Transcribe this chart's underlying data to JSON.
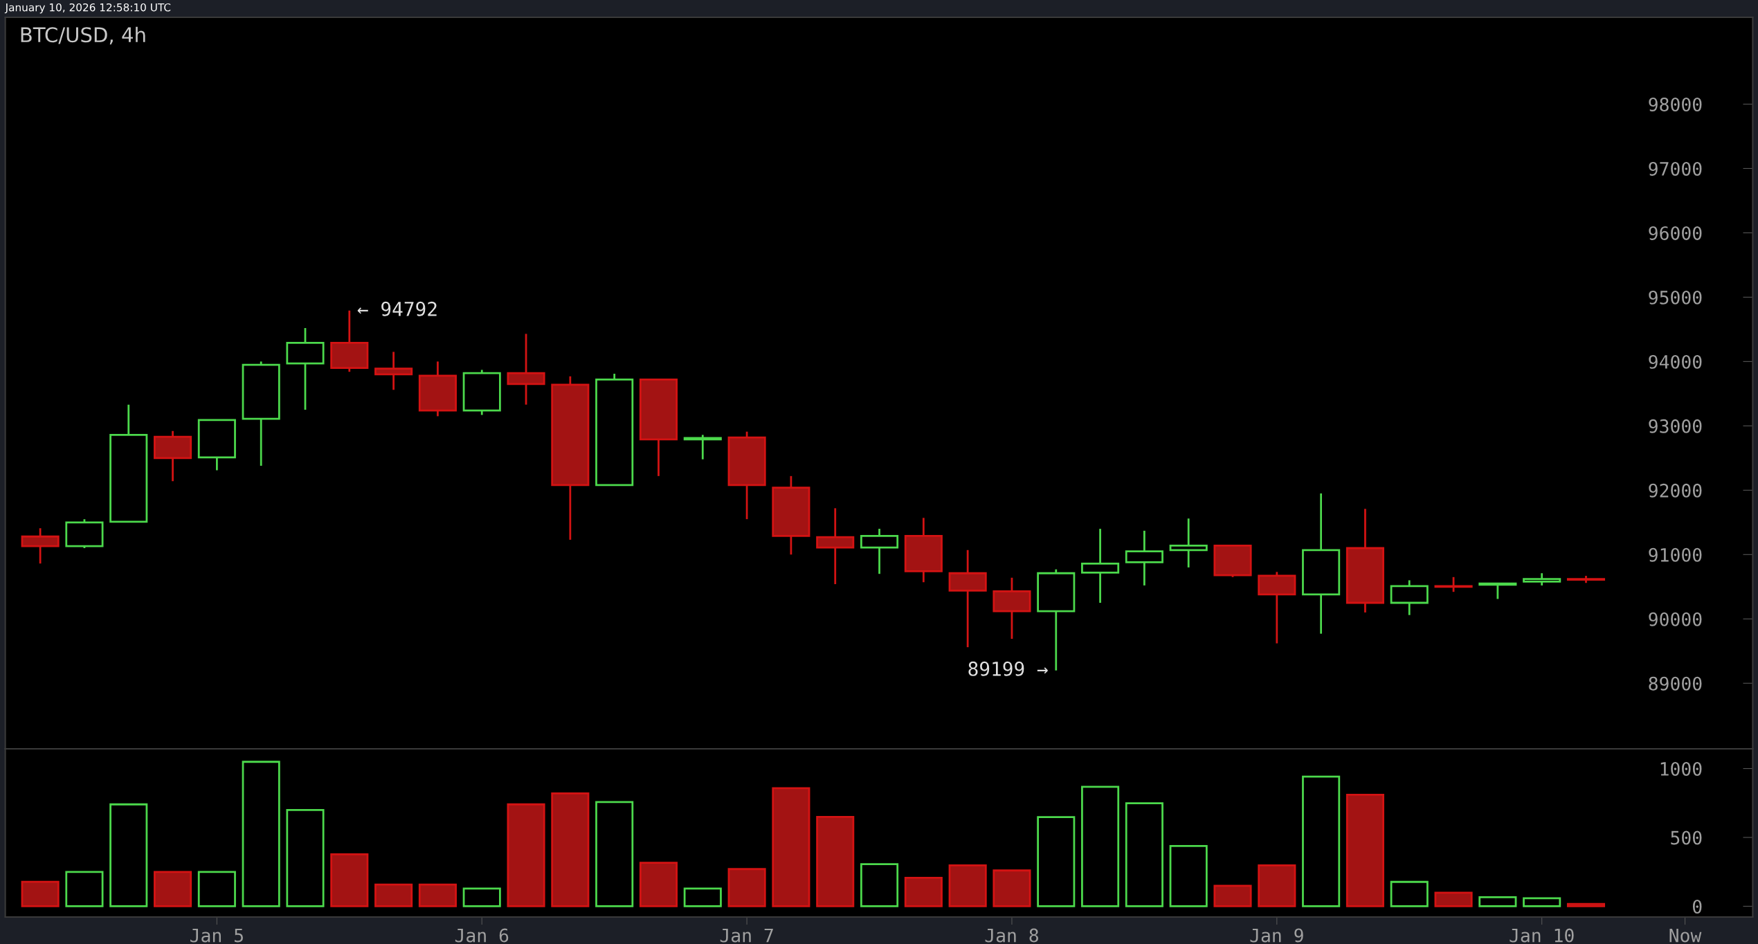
{
  "chart_data": [
    {
      "type": "candlestick",
      "title": "BTC/USD, 4h",
      "x": [
        "2026-01-04T08:00",
        "2026-01-04T12:00",
        "2026-01-04T16:00",
        "2026-01-04T20:00",
        "2026-01-05T00:00",
        "2026-01-05T04:00",
        "2026-01-05T08:00",
        "2026-01-05T12:00",
        "2026-01-05T16:00",
        "2026-01-05T20:00",
        "2026-01-06T00:00",
        "2026-01-06T04:00",
        "2026-01-06T08:00",
        "2026-01-06T12:00",
        "2026-01-06T16:00",
        "2026-01-06T20:00",
        "2026-01-07T00:00",
        "2026-01-07T04:00",
        "2026-01-07T08:00",
        "2026-01-07T12:00",
        "2026-01-07T16:00",
        "2026-01-07T20:00",
        "2026-01-08T00:00",
        "2026-01-08T04:00",
        "2026-01-08T08:00",
        "2026-01-08T12:00",
        "2026-01-08T16:00",
        "2026-01-08T20:00",
        "2026-01-09T00:00",
        "2026-01-09T04:00",
        "2026-01-09T08:00",
        "2026-01-09T12:00",
        "2026-01-09T16:00",
        "2026-01-09T20:00",
        "2026-01-10T00:00",
        "2026-01-10T04:00"
      ],
      "ohlc": [
        [
          91280,
          91410,
          90860,
          91130
        ],
        [
          91130,
          91550,
          91100,
          91500
        ],
        [
          91510,
          93330,
          91510,
          92860
        ],
        [
          92830,
          92920,
          92140,
          92500
        ],
        [
          92510,
          93090,
          92310,
          93090
        ],
        [
          93110,
          94000,
          92380,
          93950
        ],
        [
          93970,
          94520,
          93250,
          94290
        ],
        [
          94290,
          94792,
          93840,
          93900
        ],
        [
          93890,
          94150,
          93560,
          93800
        ],
        [
          93780,
          94000,
          93150,
          93240
        ],
        [
          93240,
          93870,
          93170,
          93820
        ],
        [
          93820,
          94430,
          93330,
          93650
        ],
        [
          93640,
          93770,
          91230,
          92080
        ],
        [
          92080,
          93810,
          92080,
          93720
        ],
        [
          93720,
          93720,
          92220,
          92790
        ],
        [
          92790,
          92860,
          92480,
          92810
        ],
        [
          92820,
          92910,
          91550,
          92080
        ],
        [
          92040,
          92220,
          91000,
          91290
        ],
        [
          91270,
          91720,
          90540,
          91110
        ],
        [
          91110,
          91400,
          90700,
          91290
        ],
        [
          91290,
          91570,
          90570,
          90740
        ],
        [
          90710,
          91070,
          89560,
          90440
        ],
        [
          90430,
          90640,
          89690,
          90120
        ],
        [
          90120,
          90770,
          89199,
          90710
        ],
        [
          90720,
          91400,
          90250,
          90860
        ],
        [
          90880,
          91370,
          90520,
          91050
        ],
        [
          91070,
          91560,
          90800,
          91140
        ],
        [
          91140,
          91140,
          90650,
          90680
        ],
        [
          90670,
          90730,
          89620,
          90380
        ],
        [
          90380,
          91950,
          89770,
          91070
        ],
        [
          91100,
          91710,
          90100,
          90250
        ],
        [
          90250,
          90600,
          90060,
          90510
        ],
        [
          90510,
          90650,
          90420,
          90500
        ],
        [
          90530,
          90550,
          90310,
          90550
        ],
        [
          90580,
          90710,
          90520,
          90620
        ],
        [
          90620,
          90670,
          90560,
          90610
        ]
      ],
      "colors": [
        "#a31313",
        "#4cd94c",
        "#4cd94c",
        "#a31313",
        "#4cd94c",
        "#4cd94c",
        "#4cd94c",
        "#a31313",
        "#a31313",
        "#a31313",
        "#4cd94c",
        "#a31313",
        "#a31313",
        "#4cd94c",
        "#a31313",
        "#4cd94c",
        "#a31313",
        "#a31313",
        "#a31313",
        "#4cd94c",
        "#a31313",
        "#a31313",
        "#a31313",
        "#4cd94c",
        "#4cd94c",
        "#4cd94c",
        "#4cd94c",
        "#a31313",
        "#a31313",
        "#4cd94c",
        "#a31313",
        "#4cd94c",
        "#a31313",
        "#4cd94c",
        "#4cd94c",
        "#a31313"
      ],
      "xlim": [
        "2026-01-04T04:50",
        "2026-01-10T19:06"
      ],
      "ylim": [
        87980,
        99350
      ],
      "yticks": [
        89000,
        90000,
        91000,
        92000,
        93000,
        94000,
        95000,
        96000,
        97000,
        98000
      ],
      "tick_labels": "y",
      "grid": false,
      "annotations": [
        "January 10, 2026 12:58:10 UTC",
        {
          "text": "← 94792",
          "x": "2026-01-05T12:00",
          "y": 94792
        },
        {
          "text": "89199 →",
          "x": "2026-01-08T04:00",
          "y": 89199
        }
      ]
    },
    {
      "type": "bar",
      "x": [
        "2026-01-04T08:00",
        "2026-01-04T12:00",
        "2026-01-04T16:00",
        "2026-01-04T20:00",
        "2026-01-05T00:00",
        "2026-01-05T04:00",
        "2026-01-05T08:00",
        "2026-01-05T12:00",
        "2026-01-05T16:00",
        "2026-01-05T20:00",
        "2026-01-06T00:00",
        "2026-01-06T04:00",
        "2026-01-06T08:00",
        "2026-01-06T12:00",
        "2026-01-06T16:00",
        "2026-01-06T20:00",
        "2026-01-07T00:00",
        "2026-01-07T04:00",
        "2026-01-07T08:00",
        "2026-01-07T12:00",
        "2026-01-07T16:00",
        "2026-01-07T20:00",
        "2026-01-08T00:00",
        "2026-01-08T04:00",
        "2026-01-08T08:00",
        "2026-01-08T12:00",
        "2026-01-08T16:00",
        "2026-01-08T20:00",
        "2026-01-09T00:00",
        "2026-01-09T04:00",
        "2026-01-09T08:00",
        "2026-01-09T12:00",
        "2026-01-09T16:00",
        "2026-01-09T20:00",
        "2026-01-10T00:00",
        "2026-01-10T04:00"
      ],
      "values": [
        178,
        249,
        740,
        249,
        249,
        1049,
        699,
        378,
        158,
        158,
        129,
        740,
        820,
        757,
        316,
        129,
        270,
        857,
        649,
        306,
        206,
        297,
        260,
        648,
        867,
        748,
        438,
        149,
        297,
        942,
        810,
        177,
        99,
        66,
        58,
        17
      ],
      "colors": [
        "#a31313",
        "#4cd94c",
        "#4cd94c",
        "#a31313",
        "#4cd94c",
        "#4cd94c",
        "#4cd94c",
        "#a31313",
        "#a31313",
        "#a31313",
        "#4cd94c",
        "#a31313",
        "#a31313",
        "#4cd94c",
        "#a31313",
        "#4cd94c",
        "#a31313",
        "#a31313",
        "#a31313",
        "#4cd94c",
        "#a31313",
        "#a31313",
        "#a31313",
        "#4cd94c",
        "#4cd94c",
        "#4cd94c",
        "#4cd94c",
        "#a31313",
        "#a31313",
        "#4cd94c",
        "#a31313",
        "#4cd94c",
        "#a31313",
        "#4cd94c",
        "#4cd94c",
        "#a31313"
      ],
      "xlim": [
        "2026-01-04T04:50",
        "2026-01-10T19:06"
      ],
      "xticks": [
        {
          "value": "2026-01-05",
          "label": "Jan 5"
        },
        {
          "value": "2026-01-06",
          "label": "Jan 6"
        },
        {
          "value": "2026-01-07",
          "label": "Jan 7"
        },
        {
          "value": "2026-01-08",
          "label": "Jan 8"
        },
        {
          "value": "2026-01-09",
          "label": "Jan 9"
        },
        {
          "value": "2026-01-10",
          "label": "Jan 10"
        },
        {
          "value": "2026-01-10T12:58",
          "label": "Now"
        }
      ],
      "ylim": [
        -78,
        1143
      ],
      "yticks": [
        0,
        500,
        1000
      ],
      "grid": false
    }
  ]
}
